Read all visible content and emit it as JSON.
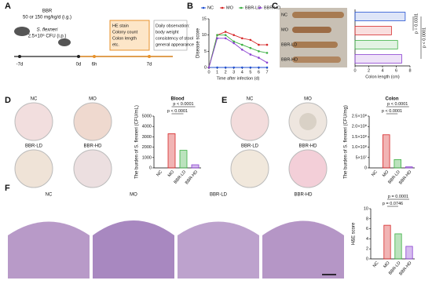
{
  "panels": {
    "labels": [
      "A",
      "B",
      "C",
      "D",
      "E",
      "F"
    ],
    "a": {
      "drug": "BBR",
      "dose": "50 or 150 mg/kg/d (i.g.)",
      "pathogen": "S. flexneri",
      "inoculum": "2.5×10⁶ CFU (i.p.)",
      "times": [
        "-7d",
        "0d",
        "6h",
        "7d"
      ],
      "box1": [
        "HE stain",
        "Colony count",
        "Colon length",
        "etc."
      ],
      "box2": [
        "Daily observation:",
        "body weight",
        "consistency of stool",
        "general appearance"
      ]
    },
    "groups": [
      "NC",
      "MO",
      "BBR-LD",
      "BBR-HD"
    ]
  },
  "chart_data": [
    {
      "type": "line",
      "xlabel": "Time after infection (d)",
      "ylabel": "Disease score",
      "x": [
        0,
        1,
        2,
        3,
        4,
        5,
        6,
        7
      ],
      "xlim": [
        0,
        7
      ],
      "xticks": [
        0,
        1,
        2,
        3,
        4,
        5,
        6,
        7
      ],
      "ylim": [
        0,
        15
      ],
      "yticks": [
        0,
        5,
        10,
        15
      ],
      "series": [
        {
          "name": "NC",
          "color": "#1f4fd1",
          "values": [
            0,
            0,
            0,
            0,
            0,
            0,
            0,
            0
          ]
        },
        {
          "name": "MO",
          "color": "#d62728",
          "values": [
            0,
            10,
            11,
            10,
            9,
            8.5,
            7,
            7
          ]
        },
        {
          "name": "BBR-LD",
          "color": "#3cb043",
          "values": [
            0,
            10,
            10,
            8,
            7,
            6,
            5,
            4.5
          ]
        },
        {
          "name": "BBR-HD",
          "color": "#8a3fd1",
          "values": [
            0,
            9,
            9,
            7.5,
            5.5,
            4,
            3,
            1.5
          ]
        }
      ]
    },
    {
      "type": "barh",
      "xlabel": "Colon length (cm)",
      "categories": [
        "NC",
        "MO",
        "BBR-LD",
        "BBR-HD"
      ],
      "values": [
        7.3,
        5.3,
        6.2,
        6.8
      ],
      "colors": [
        "#1f4fd1",
        "#d62728",
        "#3cb043",
        "#8a3fd1"
      ],
      "xlim": [
        0,
        8
      ],
      "xticks": [
        0,
        2,
        4,
        6,
        8
      ],
      "annotations": [
        "p = 0.0331",
        "p < 0.0001"
      ]
    },
    {
      "type": "bar",
      "title": "Blood",
      "ylabel": "The burden of S. flexneri (CFU/mL)",
      "categories": [
        "NC",
        "MO",
        "BBR-LD",
        "BBR-HD"
      ],
      "values": [
        0,
        3300,
        1700,
        300
      ],
      "colors": [
        "#1f4fd1",
        "#d62728",
        "#3cb043",
        "#8a3fd1"
      ],
      "ylim": [
        0,
        5000
      ],
      "yticks": [
        0,
        1000,
        2000,
        3000,
        4000,
        5000
      ],
      "annotations": [
        "p < 0.0001",
        "p < 0.0001"
      ]
    },
    {
      "type": "bar",
      "title": "Colon",
      "ylabel": "The burden of S. flexneri (CFU/mg)",
      "categories": [
        "NC",
        "MO",
        "BBR-LD",
        "BBR-HD"
      ],
      "values": [
        0,
        160000000,
        40000000,
        5000000
      ],
      "colors": [
        "#1f4fd1",
        "#d62728",
        "#3cb043",
        "#8a3fd1"
      ],
      "ylim": [
        0,
        250000000
      ],
      "yticks": [
        0,
        {
          "value": 50000000,
          "label": "5×10⁷"
        },
        {
          "value": 100000000,
          "label": "1.0×10⁸"
        },
        {
          "value": 150000000,
          "label": "1.5×10⁸"
        },
        {
          "value": 200000000,
          "label": "2.0×10⁸"
        },
        {
          "value": 250000000,
          "label": "2.5×10⁸"
        }
      ],
      "annotations": [
        "p < 0.0001",
        "p < 0.0001"
      ]
    },
    {
      "type": "bar",
      "ylabel": "H&E score",
      "categories": [
        "NC",
        "MO",
        "BBR-LD",
        "BBR-HD"
      ],
      "values": [
        0,
        6.7,
        5,
        2.5
      ],
      "colors": [
        "#1f4fd1",
        "#d62728",
        "#3cb043",
        "#8a3fd1"
      ],
      "ylim": [
        0,
        10
      ],
      "yticks": [
        0,
        2,
        4,
        6,
        8,
        10
      ],
      "annotations": [
        "p = 0.0001",
        "p = 0.0746"
      ]
    }
  ]
}
